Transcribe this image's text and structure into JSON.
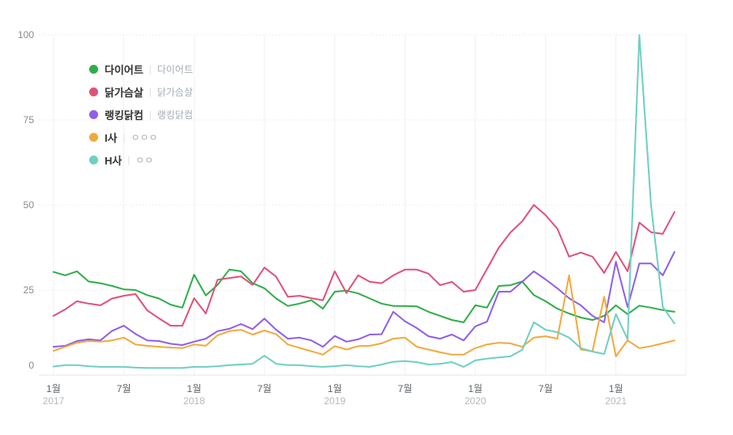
{
  "accent_colors": {
    "grid_dotted": "#eadfdf",
    "grid_vertical": "#f1f1f1",
    "axis_baseline": "#e4e4e4",
    "legend_divider": "#dcdcdc"
  },
  "legend_items": [
    {
      "label": "다이어트",
      "sub": "다이어트"
    },
    {
      "label": "닭가슴살",
      "sub": "닭가슴살"
    },
    {
      "label": "랭킹닭컴",
      "sub": "랭킹닭컴"
    },
    {
      "label": "I사",
      "sub": "ㅇㅇㅇ"
    },
    {
      "label": "H사",
      "sub": "ㅇㅇ"
    }
  ],
  "chart_data": {
    "type": "line",
    "title": "",
    "xlabel": "",
    "ylabel": "",
    "ylim": [
      0,
      100
    ],
    "y_ticks": [
      0,
      25,
      50,
      75,
      100
    ],
    "grid": true,
    "legend_position": "top-left-overlay",
    "x": [
      "2017-01",
      "2017-02",
      "2017-03",
      "2017-04",
      "2017-05",
      "2017-06",
      "2017-07",
      "2017-08",
      "2017-09",
      "2017-10",
      "2017-11",
      "2017-12",
      "2018-01",
      "2018-02",
      "2018-03",
      "2018-04",
      "2018-05",
      "2018-06",
      "2018-07",
      "2018-08",
      "2018-09",
      "2018-10",
      "2018-11",
      "2018-12",
      "2019-01",
      "2019-02",
      "2019-03",
      "2019-04",
      "2019-05",
      "2019-06",
      "2019-07",
      "2019-08",
      "2019-09",
      "2019-10",
      "2019-11",
      "2019-12",
      "2020-01",
      "2020-02",
      "2020-03",
      "2020-04",
      "2020-05",
      "2020-06",
      "2020-07",
      "2020-08",
      "2020-09",
      "2020-10",
      "2020-11",
      "2020-12",
      "2021-01",
      "2021-02",
      "2021-03",
      "2021-04",
      "2021-05",
      "2021-06"
    ],
    "x_ticks": [
      {
        "index": 0,
        "label": "1월",
        "year": "2017"
      },
      {
        "index": 6,
        "label": "7월"
      },
      {
        "index": 12,
        "label": "1월",
        "year": "2018"
      },
      {
        "index": 18,
        "label": "7월"
      },
      {
        "index": 24,
        "label": "1월",
        "year": "2019"
      },
      {
        "index": 30,
        "label": "7월"
      },
      {
        "index": 36,
        "label": "1월",
        "year": "2020"
      },
      {
        "index": 42,
        "label": "7월"
      },
      {
        "index": 48,
        "label": "1월",
        "year": "2021"
      }
    ],
    "series": [
      {
        "name": "다이어트",
        "sub": "다이어트",
        "key": "diet",
        "color": "#2fae49",
        "values": [
          30.3,
          29.3,
          30.5,
          27.5,
          27.0,
          26.2,
          25.2,
          25.0,
          23.5,
          22.5,
          20.7,
          19.8,
          29.5,
          23.4,
          26.5,
          31.0,
          30.5,
          27.0,
          25.5,
          22.5,
          20.3,
          21.0,
          22.0,
          19.5,
          24.5,
          24.8,
          24.0,
          22.5,
          21.0,
          20.3,
          20.3,
          20.2,
          18.6,
          17.4,
          16.2,
          15.5,
          20.5,
          19.8,
          26.2,
          26.4,
          27.5,
          23.5,
          21.7,
          19.5,
          18.1,
          16.9,
          16.2,
          17.4,
          20.5,
          17.9,
          20.4,
          19.8,
          19.1,
          18.6
        ]
      },
      {
        "name": "닭가슴살",
        "sub": "닭가슴살",
        "key": "chicken-breast",
        "color": "#e0517a",
        "values": [
          17.4,
          19.3,
          21.7,
          21.0,
          20.5,
          22.5,
          23.3,
          23.8,
          19.0,
          16.7,
          14.5,
          14.5,
          22.6,
          18.1,
          28.0,
          28.5,
          29.0,
          26.5,
          31.6,
          28.9,
          23.0,
          23.3,
          22.6,
          22.0,
          30.5,
          24.1,
          29.3,
          27.4,
          27.0,
          29.3,
          31.0,
          31.0,
          29.8,
          26.4,
          27.4,
          24.5,
          25.0,
          31.2,
          37.4,
          41.9,
          45.2,
          50.0,
          47.0,
          43.0,
          34.8,
          36.0,
          34.8,
          30.0,
          36.2,
          30.5,
          44.8,
          42.0,
          41.5,
          47.9
        ]
      },
      {
        "name": "랭킹닭컴",
        "sub": "랭킹닭컴",
        "key": "ranking-chicken",
        "color": "#8f5fe8",
        "values": [
          8.3,
          8.6,
          10.0,
          10.5,
          10.2,
          13.0,
          14.5,
          12.1,
          10.2,
          10.0,
          9.2,
          8.8,
          9.8,
          10.7,
          12.9,
          13.6,
          15.0,
          13.5,
          16.6,
          13.3,
          10.7,
          11.0,
          10.2,
          8.3,
          11.5,
          9.8,
          10.5,
          11.9,
          12.0,
          18.6,
          15.8,
          13.8,
          11.4,
          10.7,
          11.9,
          10.2,
          14.3,
          15.7,
          24.5,
          24.5,
          27.4,
          30.5,
          28.1,
          25.5,
          22.6,
          20.5,
          17.4,
          15.5,
          33.3,
          20.0,
          32.8,
          32.8,
          29.3,
          36.2
        ]
      },
      {
        "name": "I사",
        "sub": "ㅇㅇㅇ",
        "key": "i-company",
        "color": "#f2a93c",
        "values": [
          7.1,
          8.3,
          9.5,
          10.0,
          9.8,
          10.2,
          11.0,
          9.0,
          8.6,
          8.3,
          8.1,
          7.9,
          9.0,
          8.6,
          11.7,
          12.9,
          13.3,
          11.9,
          13.1,
          12.0,
          9.0,
          8.0,
          7.0,
          6.0,
          8.5,
          7.5,
          8.5,
          8.6,
          9.3,
          10.7,
          11.0,
          8.3,
          7.5,
          6.7,
          6.0,
          6.0,
          7.9,
          9.0,
          9.5,
          9.3,
          8.3,
          11.0,
          11.4,
          10.7,
          29.3,
          7.5,
          7.0,
          23.0,
          5.5,
          10.2,
          7.9,
          8.5,
          9.3,
          10.2
        ]
      },
      {
        "name": "H사",
        "sub": "ㅇㅇ",
        "key": "h-company",
        "color": "#6fcfc3",
        "values": [
          2.5,
          2.9,
          2.9,
          2.6,
          2.4,
          2.4,
          2.4,
          2.2,
          2.1,
          2.1,
          2.1,
          2.1,
          2.4,
          2.4,
          2.6,
          2.9,
          3.1,
          3.3,
          5.7,
          3.3,
          2.9,
          2.9,
          2.6,
          2.4,
          2.6,
          2.9,
          2.6,
          2.4,
          3.1,
          3.9,
          4.1,
          3.8,
          3.1,
          3.3,
          3.8,
          2.4,
          4.3,
          4.8,
          5.2,
          5.5,
          7.4,
          15.5,
          13.3,
          12.6,
          11.0,
          7.9,
          6.9,
          6.2,
          17.9,
          10.5,
          100.0,
          50.0,
          20.0,
          15.2
        ]
      }
    ]
  }
}
